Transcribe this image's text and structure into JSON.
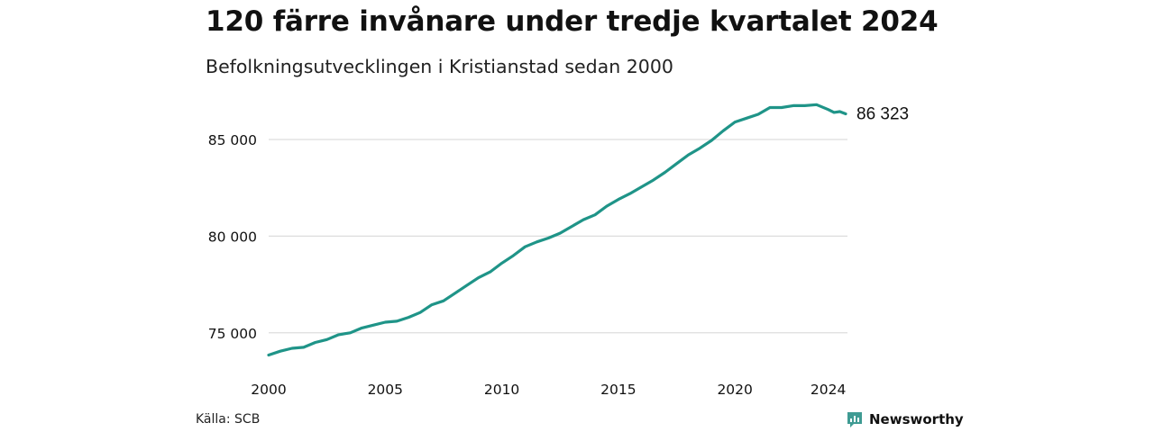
{
  "title": "120 färre invånare under tredje kvartalet 2024",
  "subtitle": "Befolkningsutvecklingen i Kristianstad sedan 2000",
  "source": "Källa: SCB",
  "brand": {
    "name": "Newsworthy",
    "color": "#3f9b93"
  },
  "chart_data": {
    "type": "line",
    "line_color": "#1f9488",
    "grid": true,
    "ylim": [
      73500,
      87000
    ],
    "xlim": [
      2000,
      2024.75
    ],
    "yticks": [
      75000,
      80000,
      85000
    ],
    "ytick_labels": [
      "75 000",
      "80 000",
      "85 000"
    ],
    "xticks": [
      2000,
      2005,
      2010,
      2015,
      2020,
      2024
    ],
    "xtick_labels": [
      "2000",
      "2005",
      "2010",
      "2015",
      "2020",
      "2024"
    ],
    "end_label": "86 323",
    "points": [
      [
        2000.0,
        73850
      ],
      [
        2000.5,
        74050
      ],
      [
        2001.0,
        74200
      ],
      [
        2001.5,
        74250
      ],
      [
        2002.0,
        74500
      ],
      [
        2002.5,
        74650
      ],
      [
        2003.0,
        74900
      ],
      [
        2003.5,
        75000
      ],
      [
        2004.0,
        75250
      ],
      [
        2004.5,
        75400
      ],
      [
        2005.0,
        75550
      ],
      [
        2005.5,
        75600
      ],
      [
        2006.0,
        75800
      ],
      [
        2006.5,
        76050
      ],
      [
        2007.0,
        76450
      ],
      [
        2007.5,
        76650
      ],
      [
        2008.0,
        77050
      ],
      [
        2008.5,
        77450
      ],
      [
        2009.0,
        77850
      ],
      [
        2009.5,
        78150
      ],
      [
        2010.0,
        78600
      ],
      [
        2010.5,
        79000
      ],
      [
        2011.0,
        79450
      ],
      [
        2011.5,
        79700
      ],
      [
        2012.0,
        79900
      ],
      [
        2012.5,
        80150
      ],
      [
        2013.0,
        80500
      ],
      [
        2013.5,
        80850
      ],
      [
        2014.0,
        81100
      ],
      [
        2014.5,
        81550
      ],
      [
        2015.0,
        81900
      ],
      [
        2015.5,
        82200
      ],
      [
        2016.0,
        82550
      ],
      [
        2016.5,
        82900
      ],
      [
        2017.0,
        83300
      ],
      [
        2017.5,
        83750
      ],
      [
        2018.0,
        84200
      ],
      [
        2018.5,
        84550
      ],
      [
        2019.0,
        84950
      ],
      [
        2019.5,
        85450
      ],
      [
        2020.0,
        85900
      ],
      [
        2020.5,
        86100
      ],
      [
        2021.0,
        86300
      ],
      [
        2021.5,
        86650
      ],
      [
        2022.0,
        86650
      ],
      [
        2022.5,
        86750
      ],
      [
        2023.0,
        86750
      ],
      [
        2023.5,
        86800
      ],
      [
        2024.0,
        86550
      ],
      [
        2024.25,
        86400
      ],
      [
        2024.5,
        86443
      ],
      [
        2024.75,
        86323
      ]
    ]
  }
}
